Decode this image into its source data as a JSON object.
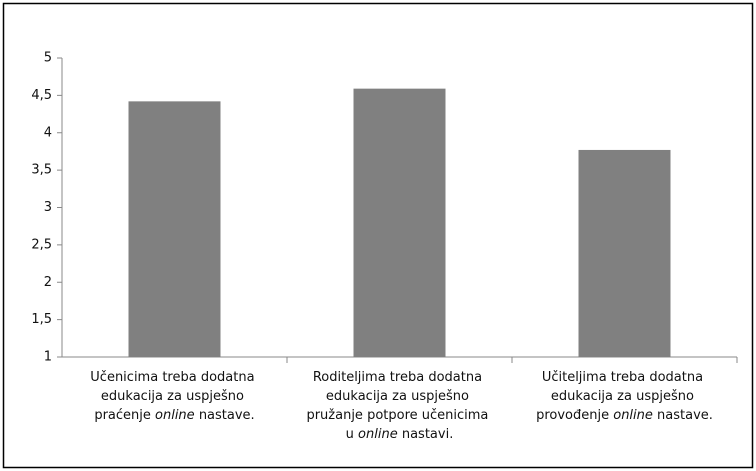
{
  "chart_data": {
    "type": "bar",
    "categories": [
      "Učenicima treba dodatna edukacija za uspješno praćenje online nastave.",
      "Roditeljima treba dodatna edukacija za uspješno pružanje potpore učenicima u online nastavi.",
      "Učiteljima treba dodatna edukacija za uspješno provođenje online nastave."
    ],
    "values": [
      4.42,
      4.59,
      3.77
    ],
    "color": "#808080",
    "ylim": [
      1,
      5
    ],
    "yticks": [
      1,
      {
        "value": 1.5,
        "label": "1,5"
      },
      2,
      {
        "value": 2.5,
        "label": "2,5"
      },
      3,
      {
        "value": 3.5,
        "label": "3,5"
      },
      4,
      {
        "value": 4.5,
        "label": "4,5"
      },
      5
    ],
    "grid": false
  }
}
